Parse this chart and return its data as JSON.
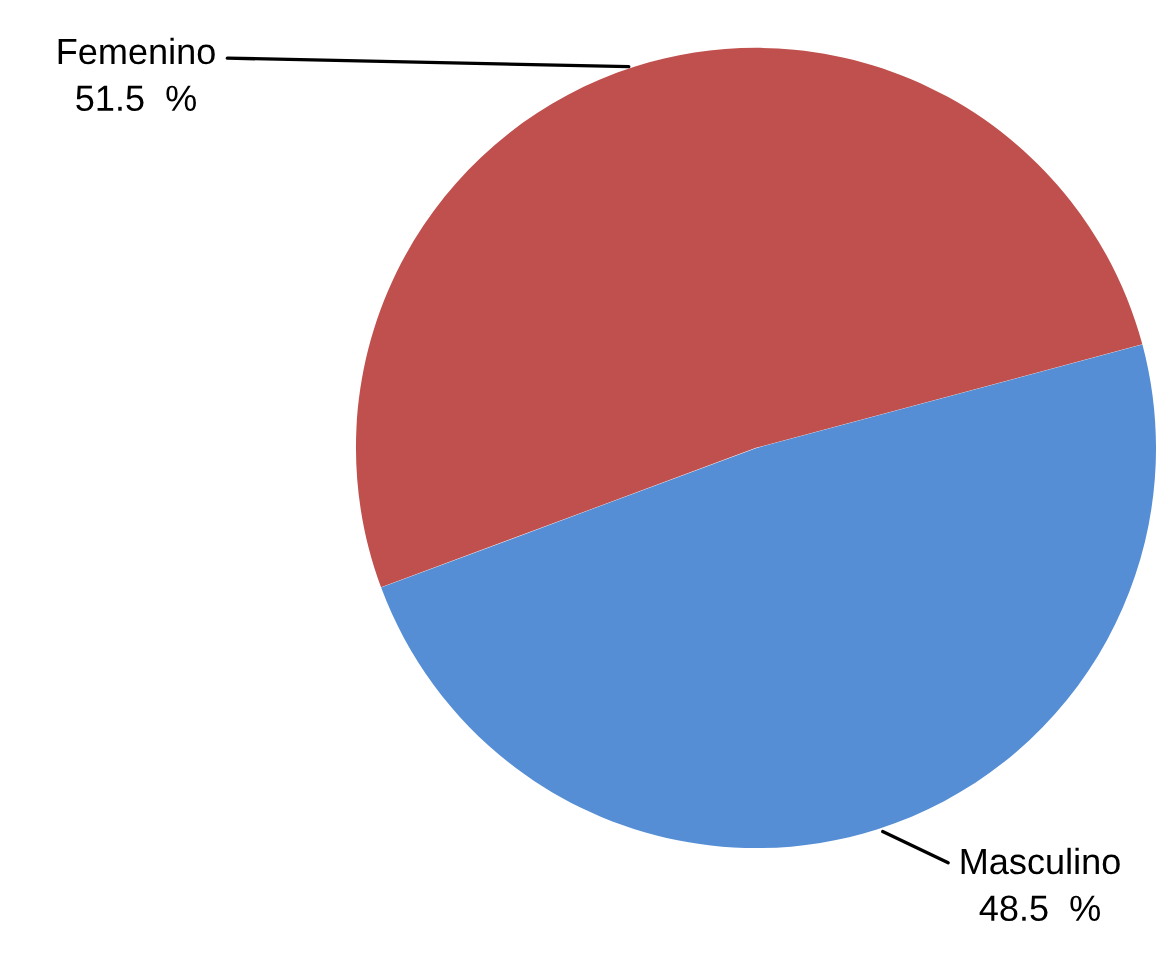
{
  "chart_data": {
    "type": "pie",
    "categories": [
      "Femenino",
      "Masculino"
    ],
    "values": [
      51.5,
      48.5
    ],
    "value_labels": [
      "51.5  %",
      "48.5  %"
    ],
    "colors": [
      "#c0504d",
      "#558ed5"
    ],
    "legend": false
  }
}
